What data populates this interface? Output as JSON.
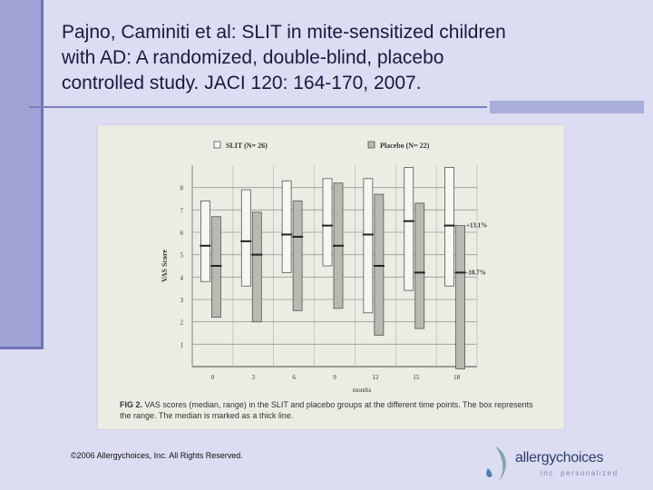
{
  "slide": {
    "title_lines": [
      "Pajno, Caminiti et al:  SLIT in mite-sensitized children",
      "with AD:  A randomized, double-blind, placebo",
      "controlled study.  JACI 120: 164-170, 2007."
    ],
    "copyright": "©2006 Allergychoices, Inc. All Rights Reserved.",
    "logo_brand": "allergychoices",
    "logo_tagline": "inc. personalized",
    "colors": {
      "background": "#dcdcf2",
      "accent": "#9fa3d6",
      "rule": "#7b80c0"
    }
  },
  "figure": {
    "caption_label": "FIG 2.",
    "caption_text": " VAS scores (median, range) in the SLIT and placebo groups at the different time points. The box represents the range. The median is marked as a thick line."
  },
  "chart_data": {
    "type": "box",
    "x": [
      0,
      3,
      6,
      9,
      12,
      15,
      18
    ],
    "xlabel": "months",
    "ylabel": "VAS Score",
    "yticks": [
      1,
      2,
      3,
      4,
      5,
      6,
      7,
      8
    ],
    "ylim": [
      0,
      9
    ],
    "grid": true,
    "legend_position": "top",
    "series": [
      {
        "name": "SLIT (N= 26)",
        "fill": "#f6f6f2",
        "ranges": [
          [
            3.8,
            7.4
          ],
          [
            3.6,
            7.9
          ],
          [
            4.2,
            8.3
          ],
          [
            4.5,
            8.4
          ],
          [
            2.4,
            8.4
          ],
          [
            3.4,
            8.9
          ],
          [
            3.6,
            8.9
          ]
        ],
        "medians": [
          5.4,
          5.6,
          5.9,
          6.3,
          5.9,
          6.5,
          6.3
        ]
      },
      {
        "name": "Placebo (N= 22)",
        "fill": "#b9b9b2",
        "ranges": [
          [
            2.2,
            6.7
          ],
          [
            2.0,
            6.9
          ],
          [
            2.5,
            7.4
          ],
          [
            2.6,
            8.2
          ],
          [
            1.4,
            7.7
          ],
          [
            1.7,
            7.3
          ],
          [
            -0.1,
            6.3
          ]
        ],
        "medians": [
          4.5,
          5.0,
          5.8,
          5.4,
          4.5,
          4.2,
          4.2
        ]
      }
    ],
    "annotations": [
      "+13.1%",
      "-10.7%"
    ],
    "annotation_values": [
      6.3,
      4.2
    ]
  }
}
